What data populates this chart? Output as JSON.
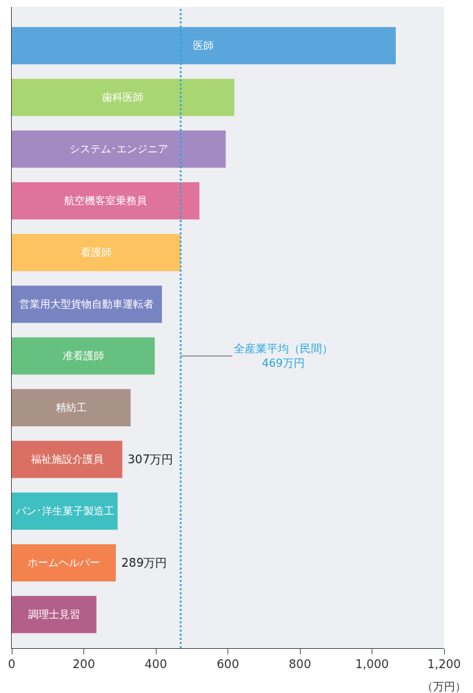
{
  "chart_data": {
    "type": "bar",
    "orientation": "horizontal",
    "xlabel": "（万円）",
    "categories": [
      "医師",
      "歯科医師",
      "システム･エンジニア",
      "航空機客室乗務員",
      "看護師",
      "営業用大型貨物自動車運転者",
      "准看護師",
      "精紡工",
      "福祉施設介護員",
      "パン･洋生菓子製造工",
      "ホームヘルパー",
      "調理士見習"
    ],
    "values": [
      1066,
      618,
      594,
      521,
      469,
      417,
      397,
      330,
      307,
      294,
      289,
      235
    ],
    "value_labels": [
      null,
      null,
      null,
      null,
      null,
      null,
      null,
      null,
      "307万円",
      null,
      "289万円",
      null
    ],
    "colors": [
      "#5aa5dc",
      "#a9d672",
      "#a48ac2",
      "#df7399",
      "#fcc360",
      "#7884c2",
      "#66c07f",
      "#a99288",
      "#d97063",
      "#3ebfc2",
      "#f4824f",
      "#b2608a"
    ],
    "xlim": [
      0,
      1200
    ],
    "xticks": [
      0,
      200,
      400,
      600,
      {
        "value": 1000,
        "label": "1,000"
      },
      {
        "value": 1200,
        "label": "1,200"
      },
      800
    ],
    "tick_labels": "x",
    "ref_lines": [
      {
        "axis": "x",
        "value": 469,
        "label": "全産業平均（民間）\n469万円",
        "color": "#29a6e0",
        "line_style": "dotted"
      }
    ]
  }
}
